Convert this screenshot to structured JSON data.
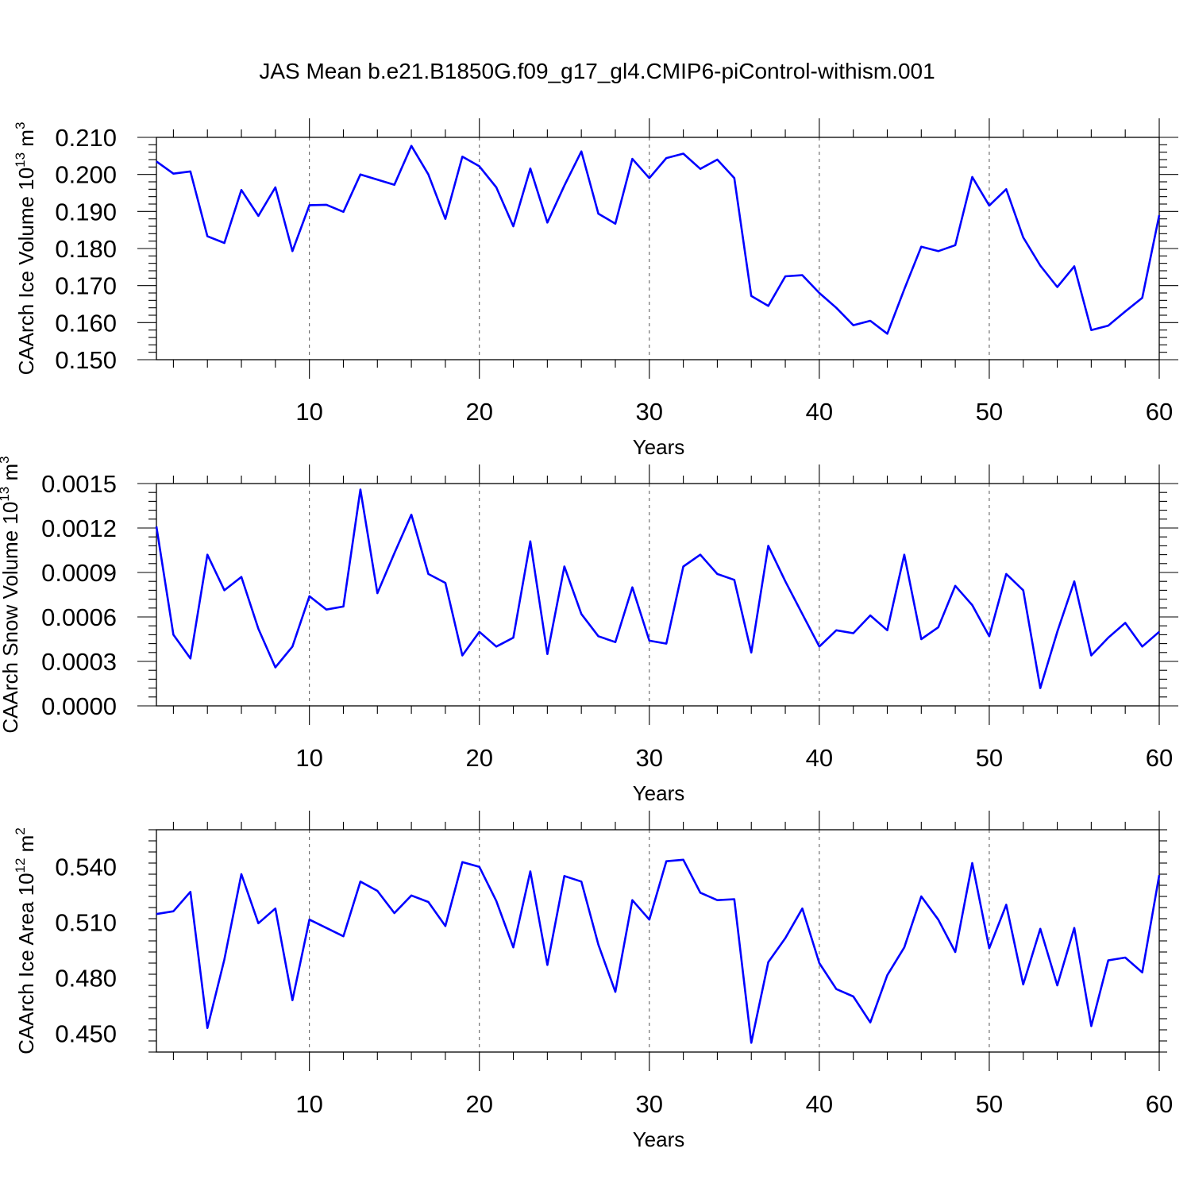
{
  "title": "JAS Mean b.e21.B1850G.f09_g17_gl4.CMIP6-piControl-withism.001",
  "colors": {
    "series": "#0000ff",
    "axis": "#000000",
    "grid": "#555555"
  },
  "chart_data": [
    {
      "type": "line",
      "name": "ice-volume",
      "xlabel": "Years",
      "ylabel_main": "CAArch Ice Volume 10",
      "ylabel_exp": "13",
      "ylabel_unit": " m",
      "ylabel_unit_exp": "3",
      "xlim": [
        1,
        60
      ],
      "ylim": [
        0.15,
        0.21
      ],
      "xticks": [
        10,
        20,
        30,
        40,
        50,
        60
      ],
      "xtick_labels": [
        "10",
        "20",
        "30",
        "40",
        "50",
        "60"
      ],
      "yticks": [
        0.15,
        0.16,
        0.17,
        0.18,
        0.19,
        0.2,
        0.21
      ],
      "ytick_labels": [
        "0.150",
        "0.160",
        "0.170",
        "0.180",
        "0.190",
        "0.200",
        "0.210"
      ],
      "grid": "vertical-dashed",
      "x": [
        1,
        2,
        3,
        4,
        5,
        6,
        7,
        8,
        9,
        10,
        11,
        12,
        13,
        14,
        15,
        16,
        17,
        18,
        19,
        20,
        21,
        22,
        23,
        24,
        25,
        26,
        27,
        28,
        29,
        30,
        31,
        32,
        33,
        34,
        35,
        36,
        37,
        38,
        39,
        40,
        41,
        42,
        43,
        44,
        45,
        46,
        47,
        48,
        49,
        50,
        51,
        52,
        53,
        54,
        55,
        56,
        57,
        58,
        59,
        60
      ],
      "values": [
        0.2035,
        0.2002,
        0.2008,
        0.1833,
        0.1815,
        0.1958,
        0.1888,
        0.1965,
        0.1793,
        0.1917,
        0.1918,
        0.1899,
        0.2,
        0.1986,
        0.1972,
        0.2077,
        0.2,
        0.188,
        0.2048,
        0.2022,
        0.1965,
        0.186,
        0.2016,
        0.187,
        0.197,
        0.2062,
        0.1894,
        0.1867,
        0.2042,
        0.199,
        0.2044,
        0.2056,
        0.2015,
        0.204,
        0.199,
        0.1672,
        0.1645,
        0.1725,
        0.1728,
        0.168,
        0.164,
        0.1593,
        0.1605,
        0.157,
        0.169,
        0.1805,
        0.1793,
        0.1809,
        0.1993,
        0.1916,
        0.196,
        0.183,
        0.1754,
        0.1696,
        0.1752,
        0.158,
        0.1592,
        0.163,
        0.1667,
        0.189
      ]
    },
    {
      "type": "line",
      "name": "snow-volume",
      "xlabel": "Years",
      "ylabel_main": "CAArch Snow Volume 10",
      "ylabel_exp": "13",
      "ylabel_unit": " m",
      "ylabel_unit_exp": "3",
      "xlim": [
        1,
        60
      ],
      "ylim": [
        0.0,
        0.0015
      ],
      "xticks": [
        10,
        20,
        30,
        40,
        50,
        60
      ],
      "xtick_labels": [
        "10",
        "20",
        "30",
        "40",
        "50",
        "60"
      ],
      "yticks": [
        0.0,
        0.0003,
        0.0006,
        0.0009,
        0.0012,
        0.0015
      ],
      "ytick_labels": [
        "0.0000",
        "0.0003",
        "0.0006",
        "0.0009",
        "0.0012",
        "0.0015"
      ],
      "grid": "vertical-dashed",
      "x": [
        1,
        2,
        3,
        4,
        5,
        6,
        7,
        8,
        9,
        10,
        11,
        12,
        13,
        14,
        15,
        16,
        17,
        18,
        19,
        20,
        21,
        22,
        23,
        24,
        25,
        26,
        27,
        28,
        29,
        30,
        31,
        32,
        33,
        34,
        35,
        36,
        37,
        38,
        39,
        40,
        41,
        42,
        43,
        44,
        45,
        46,
        47,
        48,
        49,
        50,
        51,
        52,
        53,
        54,
        55,
        56,
        57,
        58,
        59,
        60
      ],
      "values": [
        0.00121,
        0.00048,
        0.00032,
        0.00102,
        0.00078,
        0.00087,
        0.00052,
        0.00026,
        0.0004,
        0.00074,
        0.00065,
        0.00067,
        0.00146,
        0.00076,
        0.00103,
        0.00129,
        0.00089,
        0.00083,
        0.00034,
        0.0005,
        0.0004,
        0.00046,
        0.00111,
        0.00035,
        0.00094,
        0.00062,
        0.00047,
        0.00043,
        0.0008,
        0.00044,
        0.00042,
        0.00094,
        0.00102,
        0.00089,
        0.00085,
        0.00036,
        0.00108,
        0.00084,
        0.00062,
        0.0004,
        0.00051,
        0.00049,
        0.00061,
        0.00051,
        0.00102,
        0.00045,
        0.00053,
        0.00081,
        0.00068,
        0.00047,
        0.00089,
        0.00078,
        0.00012,
        0.0005,
        0.00084,
        0.00034,
        0.00046,
        0.00056,
        0.0004,
        0.0005
      ]
    },
    {
      "type": "line",
      "name": "ice-area",
      "xlabel": "Years",
      "ylabel_main": "CAArch Ice Area 10",
      "ylabel_exp": "12",
      "ylabel_unit": " m",
      "ylabel_unit_exp": "2",
      "xlim": [
        1,
        60
      ],
      "ylim": [
        0.44,
        0.56
      ],
      "xticks": [
        10,
        20,
        30,
        40,
        50,
        60
      ],
      "xtick_labels": [
        "10",
        "20",
        "30",
        "40",
        "50",
        "60"
      ],
      "yticks": [
        0.45,
        0.48,
        0.51,
        0.54
      ],
      "ytick_labels": [
        "0.450",
        "0.480",
        "0.510",
        "0.540"
      ],
      "grid": "vertical-dashed",
      "x": [
        1,
        2,
        3,
        4,
        5,
        6,
        7,
        8,
        9,
        10,
        11,
        12,
        13,
        14,
        15,
        16,
        17,
        18,
        19,
        20,
        21,
        22,
        23,
        24,
        25,
        26,
        27,
        28,
        29,
        30,
        31,
        32,
        33,
        34,
        35,
        36,
        37,
        38,
        39,
        40,
        41,
        42,
        43,
        44,
        45,
        46,
        47,
        48,
        49,
        50,
        51,
        52,
        53,
        54,
        55,
        56,
        57,
        58,
        59,
        60
      ],
      "values": [
        0.5145,
        0.516,
        0.5265,
        0.453,
        0.49,
        0.536,
        0.5095,
        0.5175,
        0.468,
        0.5115,
        0.507,
        0.5025,
        0.532,
        0.527,
        0.515,
        0.5245,
        0.521,
        0.508,
        0.5425,
        0.54,
        0.5215,
        0.4965,
        0.5375,
        0.487,
        0.535,
        0.532,
        0.498,
        0.4725,
        0.522,
        0.5115,
        0.543,
        0.5438,
        0.526,
        0.522,
        0.5225,
        0.445,
        0.4885,
        0.5015,
        0.5175,
        0.488,
        0.474,
        0.47,
        0.456,
        0.4815,
        0.4965,
        0.524,
        0.5115,
        0.494,
        0.542,
        0.496,
        0.5195,
        0.4765,
        0.5065,
        0.476,
        0.507,
        0.454,
        0.4895,
        0.491,
        0.483,
        0.5355
      ]
    }
  ]
}
